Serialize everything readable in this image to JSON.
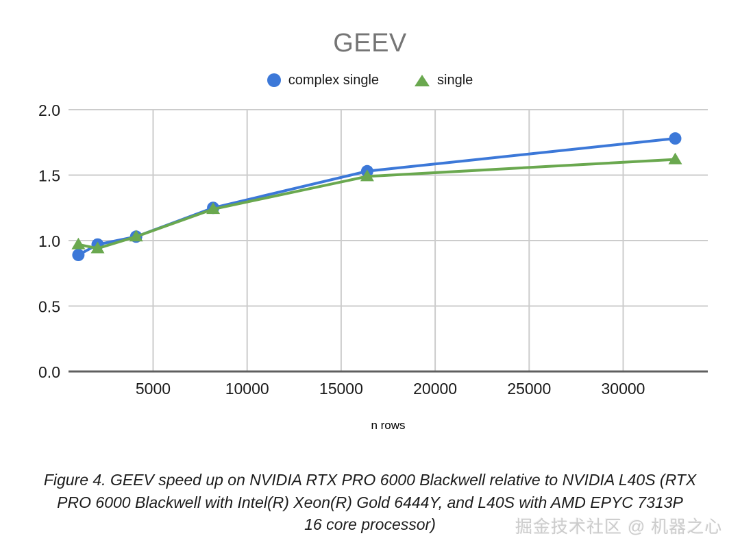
{
  "figure": {
    "caption_lines": [
      "Figure 4. GEEV speed up on NVIDIA RTX PRO 6000 Blackwell relative to NVIDIA L40S (RTX",
      "PRO 6000 Blackwell with Intel(R) Xeon(R) Gold 6444Y, and L40S with AMD EPYC 7313P",
      "16 core processor)"
    ],
    "watermark": "掘金技术社区 @ 机器之心"
  },
  "chart_data": {
    "type": "line",
    "title": "GEEV",
    "xlabel": "n rows",
    "ylabel": "",
    "x": [
      1024,
      2048,
      4096,
      8192,
      16384,
      32768
    ],
    "series": [
      {
        "name": "complex single",
        "marker": "circle",
        "color": "#3c78d8",
        "values": [
          0.89,
          0.97,
          1.03,
          1.25,
          1.53,
          1.78
        ]
      },
      {
        "name": "single",
        "marker": "triangle",
        "color": "#6aa84f",
        "values": [
          0.97,
          0.94,
          1.03,
          1.24,
          1.49,
          1.62
        ]
      }
    ],
    "xlim": [
      500,
      34500
    ],
    "ylim": [
      0,
      2
    ],
    "xticks": [
      5000,
      10000,
      15000,
      20000,
      25000,
      30000
    ],
    "yticks": [
      0,
      0.5,
      1,
      1.5,
      2
    ],
    "grid": true,
    "legend_position": "top",
    "colors": {
      "grid": "#cccccc",
      "axis": "#5f5f5f",
      "tick_text": "#1a1a1a",
      "title_text": "#757575"
    }
  }
}
